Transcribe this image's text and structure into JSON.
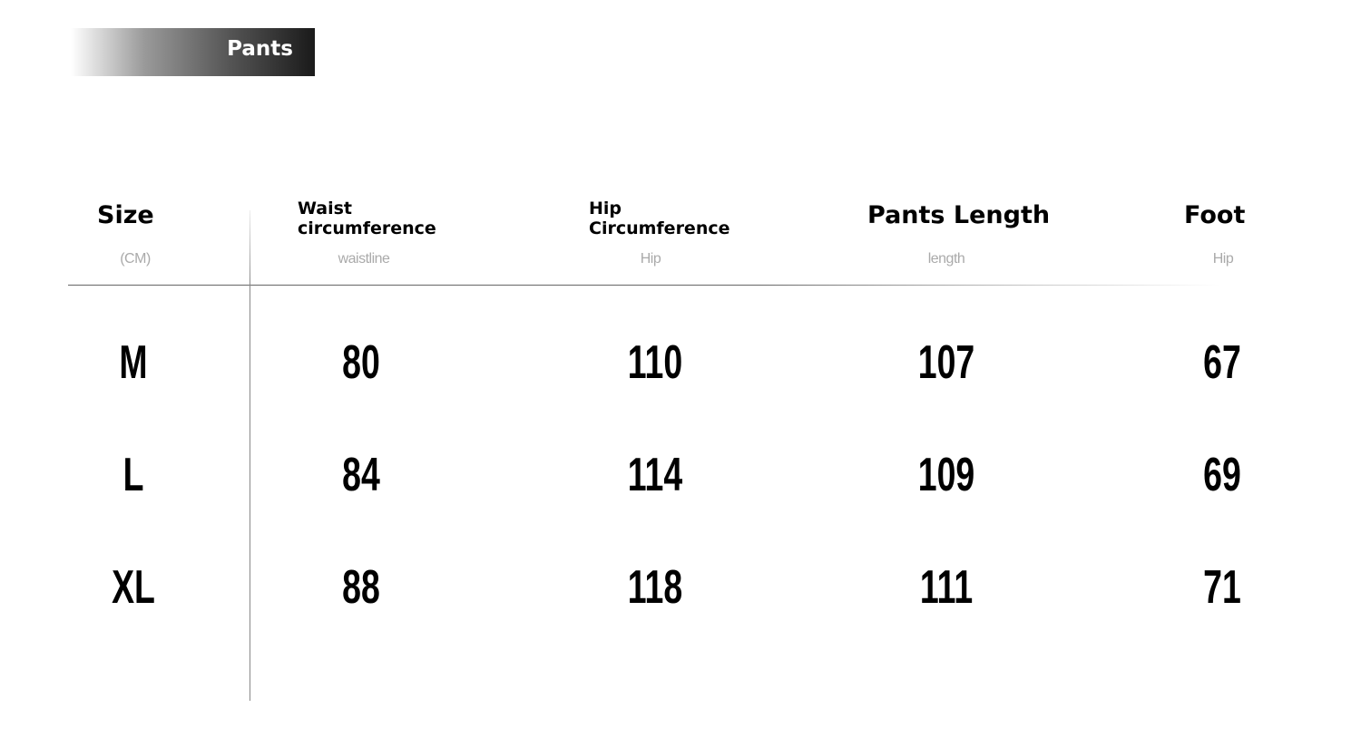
{
  "title": "Pants",
  "headers": [
    {
      "label": "Size",
      "sub": "(CM)"
    },
    {
      "label": "Waist circumference",
      "line1": "Waist",
      "line2": "circumference",
      "sub": "waistline"
    },
    {
      "label": "Hip Circumference",
      "line1": "Hip",
      "line2": "Circumference",
      "sub": "Hip"
    },
    {
      "label": "Pants Length",
      "sub": "length"
    },
    {
      "label": "Foot",
      "sub": "Hip"
    }
  ],
  "rows": [
    [
      "M",
      "80",
      "110",
      "107",
      "67"
    ],
    [
      "L",
      "84",
      "114",
      "109",
      "69"
    ],
    [
      "XL",
      "88",
      "118",
      "111",
      "71"
    ]
  ]
}
